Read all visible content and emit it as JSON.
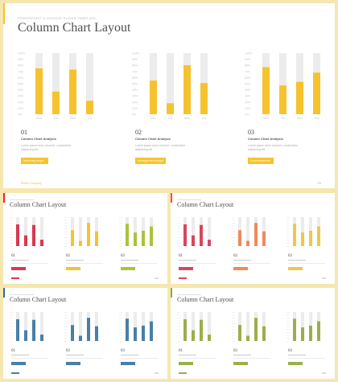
{
  "main": {
    "kicker": "Powerpoint & Google Slides Template",
    "title": "Column Chart Layout",
    "accent": "#f6c22d",
    "footer_brand": "Slides Company",
    "footer_page": "1/5",
    "columns": [
      {
        "number": "01",
        "heading": "Column Chart Analysis",
        "description": "Lorem ipsum dolor sit amet, consectetur adipiscing elit.",
        "button": "Marketing target"
      },
      {
        "number": "02",
        "heading": "Column Chart Analysis",
        "description": "Lorem ipsum dolor sit amet, consectetur adipiscing elit.",
        "button": "Management budget"
      },
      {
        "number": "03",
        "heading": "Column Chart Analysis",
        "description": "Lorem ipsum dolor sit amet, consectetur adipiscing elit.",
        "button": "Social audience"
      }
    ]
  },
  "variants": [
    {
      "title": "Column Chart Layout",
      "accent": "#ff1a1a"
    },
    {
      "title": "Column Chart Layout",
      "accent": "#fb4a3e"
    },
    {
      "title": "Column Chart Layout",
      "accent": "#2c6e9c"
    },
    {
      "title": "Column Chart Layout",
      "accent": "#86b22c"
    }
  ],
  "chart_data": [
    {
      "type": "bar",
      "categories": [
        "Mon",
        "Tue",
        "Wed",
        "Thu"
      ],
      "values": [
        75,
        37,
        73,
        22
      ],
      "yticks": [
        "0%",
        "10%",
        "20%",
        "30%",
        "40%",
        "50%",
        "60%",
        "70%",
        "80%",
        "90%",
        "100%"
      ],
      "ylim": [
        0,
        100
      ],
      "color": "#f6c22d"
    },
    {
      "type": "bar",
      "categories": [
        "Mon",
        "Tue",
        "Wed",
        "Thu"
      ],
      "values": [
        55,
        18,
        80,
        51
      ],
      "yticks": [
        "0%",
        "10%",
        "20%",
        "30%",
        "40%",
        "50%",
        "60%",
        "70%",
        "80%",
        "90%",
        "100%"
      ],
      "ylim": [
        0,
        100
      ],
      "color": "#f6c22d"
    },
    {
      "type": "bar",
      "categories": [
        "Mon",
        "Tue",
        "Wed",
        "Thu"
      ],
      "values": [
        77,
        47,
        53,
        68
      ],
      "yticks": [
        "0%",
        "10%",
        "20%",
        "30%",
        "40%",
        "50%",
        "60%",
        "70%",
        "80%",
        "90%",
        "100%"
      ],
      "ylim": [
        0,
        100
      ],
      "color": "#f6c22d"
    }
  ],
  "thumbs": [
    {
      "colors": [
        "#d9384e",
        "#f4c430",
        "#a8c43a"
      ],
      "values": [
        [
          75,
          37,
          73,
          22
        ],
        [
          55,
          18,
          80,
          51
        ],
        [
          77,
          47,
          53,
          68
        ]
      ]
    },
    {
      "colors": [
        "#d9465e",
        "#ee8a5a",
        "#f0c64c"
      ],
      "values": [
        [
          75,
          37,
          73,
          22
        ],
        [
          55,
          18,
          80,
          51
        ],
        [
          77,
          47,
          53,
          68
        ]
      ]
    },
    {
      "colors": [
        "#4a7ea7",
        "#4a7ea7",
        "#4a7ea7"
      ],
      "values": [
        [
          75,
          37,
          73,
          22
        ],
        [
          55,
          18,
          80,
          51
        ],
        [
          77,
          47,
          53,
          68
        ]
      ]
    },
    {
      "colors": [
        "#9aaf4a",
        "#9aaf4a",
        "#9aaf4a"
      ],
      "values": [
        [
          75,
          37,
          73,
          22
        ],
        [
          55,
          18,
          80,
          51
        ],
        [
          77,
          47,
          53,
          68
        ]
      ]
    }
  ]
}
